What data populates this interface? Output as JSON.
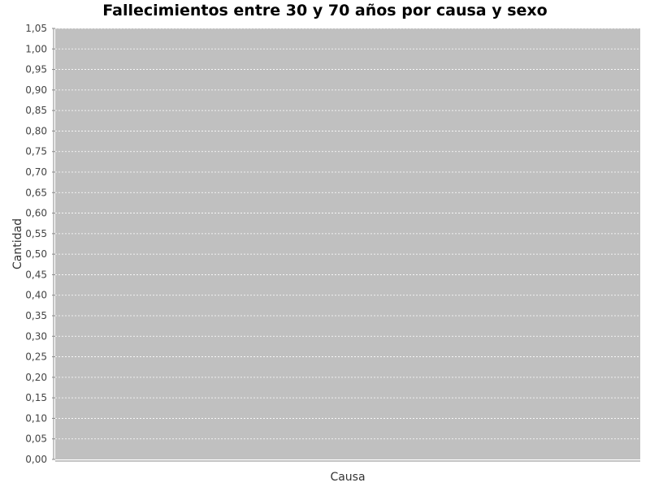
{
  "chart_data": {
    "type": "bar",
    "title": "Fallecimientos entre 30 y 70 años por causa y sexo",
    "xlabel": "Causa",
    "ylabel": "Cantidad",
    "categories": [],
    "series": [],
    "ylim": [
      0,
      1.05
    ],
    "y_ticks": [
      "0,00",
      "0,05",
      "0,10",
      "0,15",
      "0,20",
      "0,25",
      "0,30",
      "0,35",
      "0,40",
      "0,45",
      "0,50",
      "0,55",
      "0,60",
      "0,65",
      "0,70",
      "0,75",
      "0,80",
      "0,85",
      "0,90",
      "0,95",
      "1,00",
      "1,05"
    ],
    "grid": true,
    "plot_background": "#c0c0c0",
    "gridline_color": "#ffffff"
  }
}
